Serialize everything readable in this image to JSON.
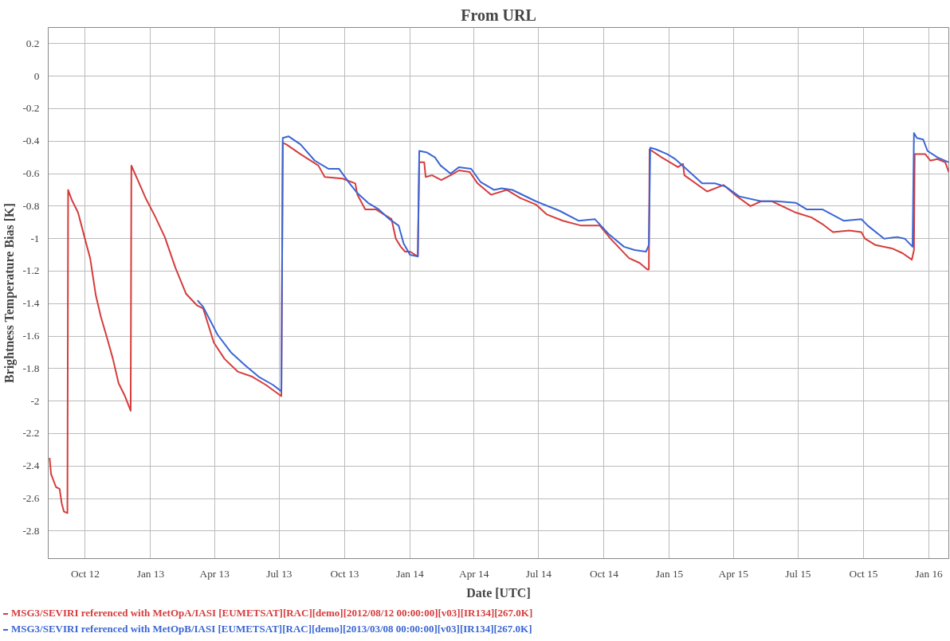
{
  "chart_data": {
    "type": "line",
    "title": "From URL",
    "xlabel": "Date [UTC]",
    "ylabel": "Brightness Temperature Bias [K]",
    "xlim": [
      "2012-08-10",
      "2016-01-29"
    ],
    "xticks": [
      {
        "value": "2012-10-01",
        "label": "Oct 12"
      },
      {
        "value": "2013-01-01",
        "label": "Jan 13"
      },
      {
        "value": "2013-04-01",
        "label": "Apr 13"
      },
      {
        "value": "2013-07-01",
        "label": "Jul 13"
      },
      {
        "value": "2013-10-01",
        "label": "Oct 13"
      },
      {
        "value": "2014-01-01",
        "label": "Jan 14"
      },
      {
        "value": "2014-04-01",
        "label": "Apr 14"
      },
      {
        "value": "2014-07-01",
        "label": "Jul 14"
      },
      {
        "value": "2014-10-01",
        "label": "Oct 14"
      },
      {
        "value": "2015-01-01",
        "label": "Jan 15"
      },
      {
        "value": "2015-04-01",
        "label": "Apr 15"
      },
      {
        "value": "2015-07-01",
        "label": "Jul 15"
      },
      {
        "value": "2015-10-01",
        "label": "Oct 15"
      },
      {
        "value": "2016-01-01",
        "label": "Jan 16"
      }
    ],
    "ylim": [
      -2.97,
      0.3
    ],
    "yticks": [
      0.2,
      0,
      -0.2,
      -0.4,
      -0.6,
      -0.8,
      -1,
      -1.2,
      -1.4,
      -1.6,
      -1.8,
      -2,
      -2.2,
      -2.4,
      -2.6,
      -2.8
    ],
    "grid": true,
    "legend": "bottom left",
    "line_style": "solid",
    "marker": "none",
    "series": [
      {
        "name": "MSG3/SEVIRI referenced with MetOpA/IASI [EUMETSAT][RAC][demo][2012/08/12 00:00:00][v03][IR134][267.0K]",
        "color": "#d63c3c",
        "x": [
          "2012-08-12",
          "2012-08-14",
          "2012-08-21",
          "2012-08-26",
          "2012-08-29",
          "2012-09-01",
          "2012-09-06",
          "2012-09-07",
          "2012-09-12",
          "2012-09-21",
          "2012-09-30",
          "2012-10-08",
          "2012-10-16",
          "2012-10-23",
          "2012-11-02",
          "2012-11-09",
          "2012-11-17",
          "2012-11-26",
          "2012-12-04",
          "2012-12-05",
          "2012-12-13",
          "2012-12-25",
          "2013-01-07",
          "2013-01-21",
          "2013-02-05",
          "2013-02-20",
          "2013-03-07",
          "2013-03-16",
          "2013-03-31",
          "2013-04-15",
          "2013-05-04",
          "2013-05-24",
          "2013-06-12",
          "2013-07-04",
          "2013-07-06",
          "2013-07-11",
          "2013-07-31",
          "2013-08-25",
          "2013-09-03",
          "2013-09-28",
          "2013-10-16",
          "2013-10-19",
          "2013-10-30",
          "2013-11-14",
          "2013-11-25",
          "2013-12-06",
          "2013-12-12",
          "2013-12-19",
          "2013-12-25",
          "2014-01-01",
          "2014-01-12",
          "2014-01-14",
          "2014-01-21",
          "2014-01-23",
          "2014-02-01",
          "2014-02-14",
          "2014-02-27",
          "2014-03-11",
          "2014-03-26",
          "2014-04-06",
          "2014-04-25",
          "2014-05-17",
          "2014-06-05",
          "2014-06-27",
          "2014-07-12",
          "2014-08-04",
          "2014-08-30",
          "2014-09-25",
          "2014-10-10",
          "2014-11-05",
          "2014-11-20",
          "2014-12-01",
          "2014-12-03",
          "2014-12-04",
          "2014-12-21",
          "2015-01-13",
          "2015-01-20",
          "2015-01-22",
          "2015-02-23",
          "2015-03-18",
          "2015-04-06",
          "2015-04-25",
          "2015-05-10",
          "2015-05-25",
          "2015-06-28",
          "2015-07-20",
          "2015-08-04",
          "2015-08-19",
          "2015-09-11",
          "2015-09-28",
          "2015-10-03",
          "2015-10-18",
          "2015-11-10",
          "2015-11-25",
          "2015-12-08",
          "2015-12-11",
          "2015-12-12",
          "2015-12-27",
          "2016-01-03",
          "2016-01-13",
          "2016-01-24",
          "2016-01-29"
        ],
        "values": [
          -2.35,
          -2.45,
          -2.53,
          -2.54,
          -2.63,
          -2.68,
          -2.69,
          -0.7,
          -0.76,
          -0.84,
          -0.99,
          -1.12,
          -1.35,
          -1.48,
          -1.63,
          -1.74,
          -1.89,
          -1.97,
          -2.06,
          -0.55,
          -0.63,
          -0.75,
          -0.86,
          -0.99,
          -1.18,
          -1.34,
          -1.41,
          -1.43,
          -1.64,
          -1.74,
          -1.82,
          -1.85,
          -1.9,
          -1.97,
          -0.41,
          -0.42,
          -0.48,
          -0.55,
          -0.62,
          -0.63,
          -0.66,
          -0.73,
          -0.82,
          -0.82,
          -0.85,
          -0.88,
          -1.0,
          -1.05,
          -1.08,
          -1.08,
          -1.11,
          -0.53,
          -0.53,
          -0.62,
          -0.61,
          -0.64,
          -0.61,
          -0.58,
          -0.59,
          -0.66,
          -0.73,
          -0.7,
          -0.75,
          -0.79,
          -0.85,
          -0.89,
          -0.92,
          -0.92,
          -1.0,
          -1.12,
          -1.15,
          -1.19,
          -1.19,
          -0.45,
          -0.5,
          -0.56,
          -0.54,
          -0.61,
          -0.71,
          -0.67,
          -0.74,
          -0.8,
          -0.77,
          -0.77,
          -0.84,
          -0.87,
          -0.91,
          -0.96,
          -0.95,
          -0.96,
          -1.0,
          -1.04,
          -1.06,
          -1.09,
          -1.13,
          -1.07,
          -0.48,
          -0.48,
          -0.52,
          -0.51,
          -0.53,
          -0.59
        ]
      },
      {
        "name": "MSG3/SEVIRI referenced with MetOpB/IASI [EUMETSAT][RAC][demo][2013/03/08 00:00:00][v03][IR134][267.0K]",
        "color": "#3a66d4",
        "x": [
          "2013-03-08",
          "2013-03-16",
          "2013-04-05",
          "2013-04-24",
          "2013-05-14",
          "2013-06-02",
          "2013-06-22",
          "2013-07-04",
          "2013-07-06",
          "2013-07-14",
          "2013-07-31",
          "2013-08-20",
          "2013-09-08",
          "2013-09-23",
          "2013-10-08",
          "2013-10-19",
          "2013-11-03",
          "2013-11-18",
          "2013-12-03",
          "2013-12-16",
          "2013-12-23",
          "2014-01-01",
          "2014-01-12",
          "2014-01-14",
          "2014-01-25",
          "2014-02-05",
          "2014-02-13",
          "2014-02-27",
          "2014-03-11",
          "2014-03-28",
          "2014-04-10",
          "2014-04-29",
          "2014-05-10",
          "2014-05-25",
          "2014-06-27",
          "2014-07-31",
          "2014-08-26",
          "2014-09-18",
          "2014-10-07",
          "2014-10-29",
          "2014-11-13",
          "2014-11-29",
          "2014-12-03",
          "2014-12-05",
          "2014-12-13",
          "2014-12-29",
          "2015-01-09",
          "2015-01-22",
          "2015-02-16",
          "2015-03-06",
          "2015-03-21",
          "2015-04-09",
          "2015-05-10",
          "2015-06-01",
          "2015-06-28",
          "2015-07-13",
          "2015-08-04",
          "2015-09-03",
          "2015-09-28",
          "2015-10-07",
          "2015-10-30",
          "2015-11-17",
          "2015-11-28",
          "2015-12-09",
          "2015-12-11",
          "2015-12-15",
          "2015-12-24",
          "2015-12-30",
          "2016-01-13",
          "2016-01-29"
        ],
        "values": [
          -1.38,
          -1.42,
          -1.59,
          -1.7,
          -1.78,
          -1.85,
          -1.9,
          -1.94,
          -0.38,
          -0.37,
          -0.42,
          -0.52,
          -0.57,
          -0.57,
          -0.66,
          -0.72,
          -0.78,
          -0.82,
          -0.88,
          -0.92,
          -1.03,
          -1.1,
          -1.11,
          -0.46,
          -0.47,
          -0.5,
          -0.55,
          -0.6,
          -0.56,
          -0.57,
          -0.65,
          -0.7,
          -0.69,
          -0.7,
          -0.77,
          -0.83,
          -0.89,
          -0.88,
          -0.97,
          -1.05,
          -1.07,
          -1.08,
          -1.04,
          -0.44,
          -0.45,
          -0.48,
          -0.51,
          -0.56,
          -0.66,
          -0.66,
          -0.68,
          -0.74,
          -0.77,
          -0.77,
          -0.78,
          -0.82,
          -0.82,
          -0.89,
          -0.88,
          -0.92,
          -1.0,
          -0.99,
          -1.0,
          -1.05,
          -0.35,
          -0.38,
          -0.39,
          -0.46,
          -0.5,
          -0.53
        ]
      }
    ]
  }
}
